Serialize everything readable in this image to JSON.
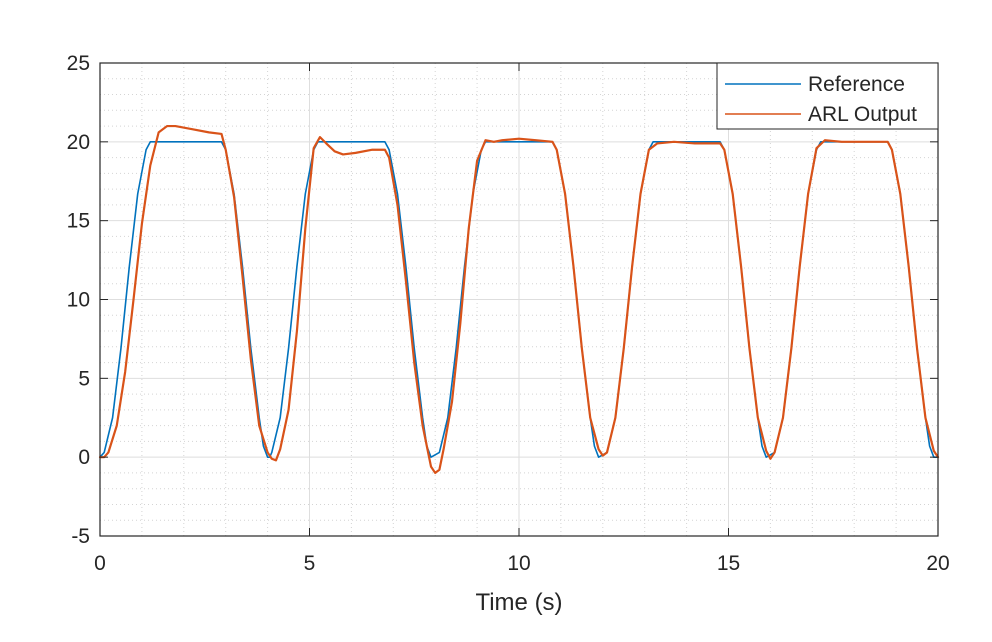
{
  "chart_data": {
    "type": "line",
    "title": "",
    "xlabel": "Time (s)",
    "ylabel": "",
    "xlim": [
      0,
      20
    ],
    "ylim": [
      -5,
      25
    ],
    "x_ticks": [
      "0",
      "5",
      "10",
      "15",
      "20"
    ],
    "y_ticks": [
      "-5",
      "0",
      "5",
      "10",
      "15",
      "20",
      "25"
    ],
    "grid": "major and minor",
    "legend_position": "top-right",
    "colors": {
      "reference": "#0072BD",
      "arl_output": "#D95319",
      "major_grid": "#dedede",
      "minor_grid": "#d4d4d4",
      "axis": "#262626"
    },
    "series": [
      {
        "name": "Reference",
        "color": "#0072BD",
        "x": [
          0,
          0.1,
          0.3,
          0.5,
          0.7,
          0.9,
          1.1,
          1.2,
          2.9,
          3.0,
          3.2,
          3.4,
          3.6,
          3.8,
          3.9,
          4.0,
          4.05,
          4.1,
          4.3,
          4.5,
          4.7,
          4.9,
          5.1,
          5.2,
          6.8,
          6.9,
          7.1,
          7.3,
          7.5,
          7.7,
          7.8,
          7.9,
          8.1,
          8.3,
          8.5,
          8.7,
          8.9,
          9.1,
          9.2,
          10.8,
          10.9,
          11.1,
          11.3,
          11.5,
          11.7,
          11.8,
          11.9,
          12.1,
          12.3,
          12.5,
          12.7,
          12.9,
          13.1,
          13.2,
          14.8,
          14.9,
          15.1,
          15.3,
          15.5,
          15.7,
          15.8,
          15.9,
          16.1,
          16.3,
          16.5,
          16.7,
          16.9,
          17.1,
          17.2,
          18.8,
          18.9,
          19.1,
          19.3,
          19.5,
          19.7,
          19.8,
          19.9,
          20.0
        ],
        "y": [
          0,
          0.3,
          2.5,
          6.9,
          12.1,
          16.7,
          19.5,
          20,
          20,
          19.5,
          16.7,
          12.1,
          6.9,
          2.5,
          0.7,
          0,
          0,
          0.3,
          2.5,
          6.9,
          12.1,
          16.7,
          19.5,
          20,
          20,
          19.5,
          16.7,
          12.1,
          6.9,
          2.5,
          0.7,
          0,
          0.3,
          2.5,
          6.9,
          12.1,
          16.7,
          19.5,
          20,
          20,
          19.5,
          16.7,
          12.1,
          6.9,
          2.5,
          0.7,
          0,
          0.3,
          2.5,
          6.9,
          12.1,
          16.7,
          19.5,
          20,
          20,
          19.5,
          16.7,
          12.1,
          6.9,
          2.5,
          0.7,
          0,
          0.3,
          2.5,
          6.9,
          12.1,
          16.7,
          19.5,
          20,
          20,
          19.5,
          16.7,
          12.1,
          6.9,
          2.5,
          0.7,
          0,
          0
        ]
      },
      {
        "name": "ARL Output",
        "color": "#D95319",
        "x": [
          0,
          0.1,
          0.2,
          0.4,
          0.6,
          0.8,
          1.0,
          1.2,
          1.4,
          1.6,
          1.8,
          2.2,
          2.6,
          2.9,
          3.0,
          3.2,
          3.4,
          3.6,
          3.8,
          4.0,
          4.1,
          4.2,
          4.3,
          4.5,
          4.7,
          4.9,
          5.1,
          5.25,
          5.4,
          5.6,
          5.8,
          6.1,
          6.5,
          6.8,
          6.9,
          7.1,
          7.3,
          7.5,
          7.7,
          7.9,
          8.0,
          8.1,
          8.2,
          8.4,
          8.6,
          8.8,
          9.0,
          9.2,
          9.4,
          9.6,
          10.0,
          10.4,
          10.8,
          10.9,
          11.1,
          11.3,
          11.5,
          11.7,
          11.9,
          12.0,
          12.1,
          12.3,
          12.5,
          12.7,
          12.9,
          13.1,
          13.3,
          13.7,
          14.2,
          14.8,
          14.9,
          15.1,
          15.3,
          15.5,
          15.7,
          15.9,
          16.0,
          16.1,
          16.3,
          16.5,
          16.7,
          16.9,
          17.1,
          17.3,
          17.7,
          18.2,
          18.8,
          18.9,
          19.1,
          19.3,
          19.5,
          19.7,
          19.9,
          20.0
        ],
        "y": [
          0,
          0,
          0.3,
          2.0,
          5.4,
          10.0,
          14.8,
          18.5,
          20.6,
          21.0,
          21.0,
          20.8,
          20.6,
          20.5,
          19.5,
          16.5,
          11.5,
          6.2,
          2.0,
          0.3,
          -0.1,
          -0.2,
          0.5,
          3.0,
          8.0,
          14.5,
          19.6,
          20.3,
          19.9,
          19.4,
          19.2,
          19.3,
          19.5,
          19.5,
          19.0,
          16.0,
          11.2,
          6.0,
          2.0,
          -0.6,
          -1.0,
          -0.8,
          0.5,
          3.5,
          8.5,
          14.5,
          18.8,
          20.1,
          20.0,
          20.1,
          20.2,
          20.1,
          20.0,
          19.5,
          16.7,
          12.1,
          6.9,
          2.5,
          0.5,
          0.1,
          0.3,
          2.5,
          6.9,
          12.1,
          16.7,
          19.5,
          19.9,
          20.0,
          19.9,
          19.9,
          19.5,
          16.7,
          12.1,
          6.9,
          2.5,
          0.4,
          -0.1,
          0.3,
          2.5,
          6.9,
          12.1,
          16.7,
          19.6,
          20.1,
          20.0,
          20.0,
          20.0,
          19.5,
          16.7,
          12.1,
          6.9,
          2.5,
          0.4,
          0
        ]
      }
    ]
  }
}
